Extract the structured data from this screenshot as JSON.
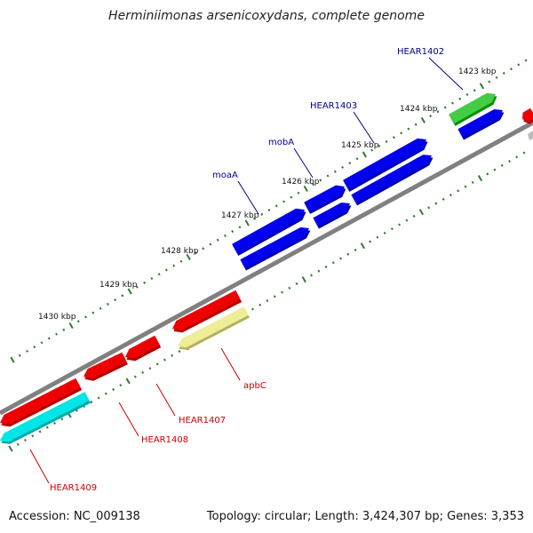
{
  "title": "Herminiimonas arsenicoxydans, complete genome",
  "footer": {
    "accession": "Accession: NC_009138",
    "summary": "Topology: circular; Length: 3,424,307 bp; Genes: 3,353"
  },
  "colors": {
    "backbone": "#808080",
    "tick": "#2e7d2e",
    "label_forward": "#00008b",
    "label_reverse": "#cc0000"
  },
  "ticks": [
    {
      "label": "1423 kbp"
    },
    {
      "label": "1424 kbp"
    },
    {
      "label": "1425 kbp"
    },
    {
      "label": "1426 kbp"
    },
    {
      "label": "1427 kbp"
    },
    {
      "label": "1428 kbp"
    },
    {
      "label": "1429 kbp"
    },
    {
      "label": "1430 kbp"
    }
  ],
  "features": [
    {
      "name": "green-gene",
      "color": "#44cc44",
      "strand": "outer"
    },
    {
      "name": "blue-gene-1",
      "color": "#0000ee",
      "strand": "outer"
    },
    {
      "name": "blue-gene-2",
      "color": "#0000ee",
      "strand": "outer"
    },
    {
      "name": "blue-gene-3",
      "color": "#0000ee",
      "strand": "outer"
    },
    {
      "name": "red-gene-1",
      "color": "#ee0000",
      "strand": "inner"
    },
    {
      "name": "red-gene-2",
      "color": "#ee0000",
      "strand": "inner"
    },
    {
      "name": "red-gene-3",
      "color": "#ee0000",
      "strand": "inner"
    },
    {
      "name": "yellow-gene",
      "color": "#eeee99",
      "strand": "inner"
    },
    {
      "name": "cyan-gene",
      "color": "#00e5e5",
      "strand": "inner"
    }
  ],
  "gene_labels": [
    {
      "text": "HEAR1402",
      "side": "forward"
    },
    {
      "text": "HEAR1403",
      "side": "forward"
    },
    {
      "text": "mobA",
      "side": "forward"
    },
    {
      "text": "moaA",
      "side": "forward"
    },
    {
      "text": "apbC",
      "side": "reverse"
    },
    {
      "text": "HEAR1407",
      "side": "reverse"
    },
    {
      "text": "HEAR1408",
      "side": "reverse"
    },
    {
      "text": "HEAR1409",
      "side": "reverse"
    }
  ]
}
